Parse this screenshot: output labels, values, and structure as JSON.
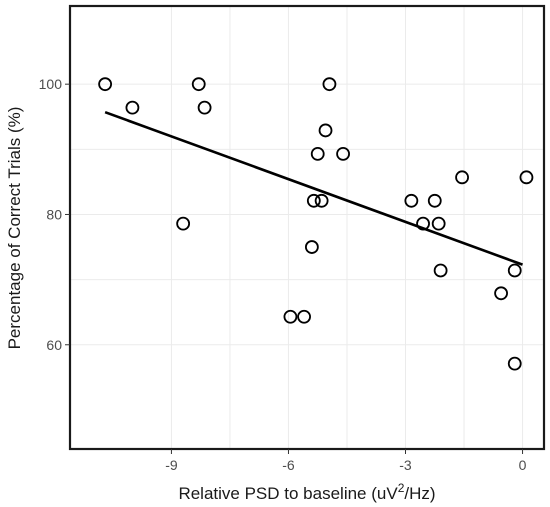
{
  "chart_data": {
    "type": "scatter",
    "title": "",
    "xlabel": "Relative PSD to baseline (uV",
    "xlabel_sup": "2",
    "xlabel_suffix": "/Hz)",
    "ylabel": "Percentage of Correct Trials (%)",
    "xlim": [
      -11.6,
      0.55
    ],
    "ylim": [
      44,
      112
    ],
    "xticks": [
      -9,
      -6,
      -3,
      0
    ],
    "xtick_labels": [
      "-9",
      "-6",
      "-3",
      "0"
    ],
    "yticks": [
      60,
      80,
      100
    ],
    "ytick_labels": [
      "60",
      "80",
      "100"
    ],
    "grid": true,
    "regression_line": {
      "x": [
        -10.7,
        0.0
      ],
      "y": [
        95.7,
        72.3
      ]
    },
    "points": [
      {
        "x": -10.7,
        "y": 100.0
      },
      {
        "x": -10.0,
        "y": 96.4
      },
      {
        "x": -8.3,
        "y": 100.0
      },
      {
        "x": -8.15,
        "y": 96.4
      },
      {
        "x": -8.7,
        "y": 78.6
      },
      {
        "x": -4.95,
        "y": 100.0
      },
      {
        "x": -5.05,
        "y": 92.9
      },
      {
        "x": -5.25,
        "y": 89.3
      },
      {
        "x": -4.6,
        "y": 89.3
      },
      {
        "x": -5.35,
        "y": 82.1
      },
      {
        "x": -5.15,
        "y": 82.1
      },
      {
        "x": -5.4,
        "y": 75.0
      },
      {
        "x": -5.95,
        "y": 64.3
      },
      {
        "x": -5.6,
        "y": 64.3
      },
      {
        "x": -2.85,
        "y": 82.1
      },
      {
        "x": -2.55,
        "y": 78.6
      },
      {
        "x": -2.25,
        "y": 82.1
      },
      {
        "x": -2.15,
        "y": 78.6
      },
      {
        "x": -2.1,
        "y": 71.4
      },
      {
        "x": -1.55,
        "y": 85.7
      },
      {
        "x": 0.1,
        "y": 85.7
      },
      {
        "x": -0.2,
        "y": 71.4
      },
      {
        "x": -0.55,
        "y": 67.9
      },
      {
        "x": -0.2,
        "y": 57.1
      }
    ]
  }
}
